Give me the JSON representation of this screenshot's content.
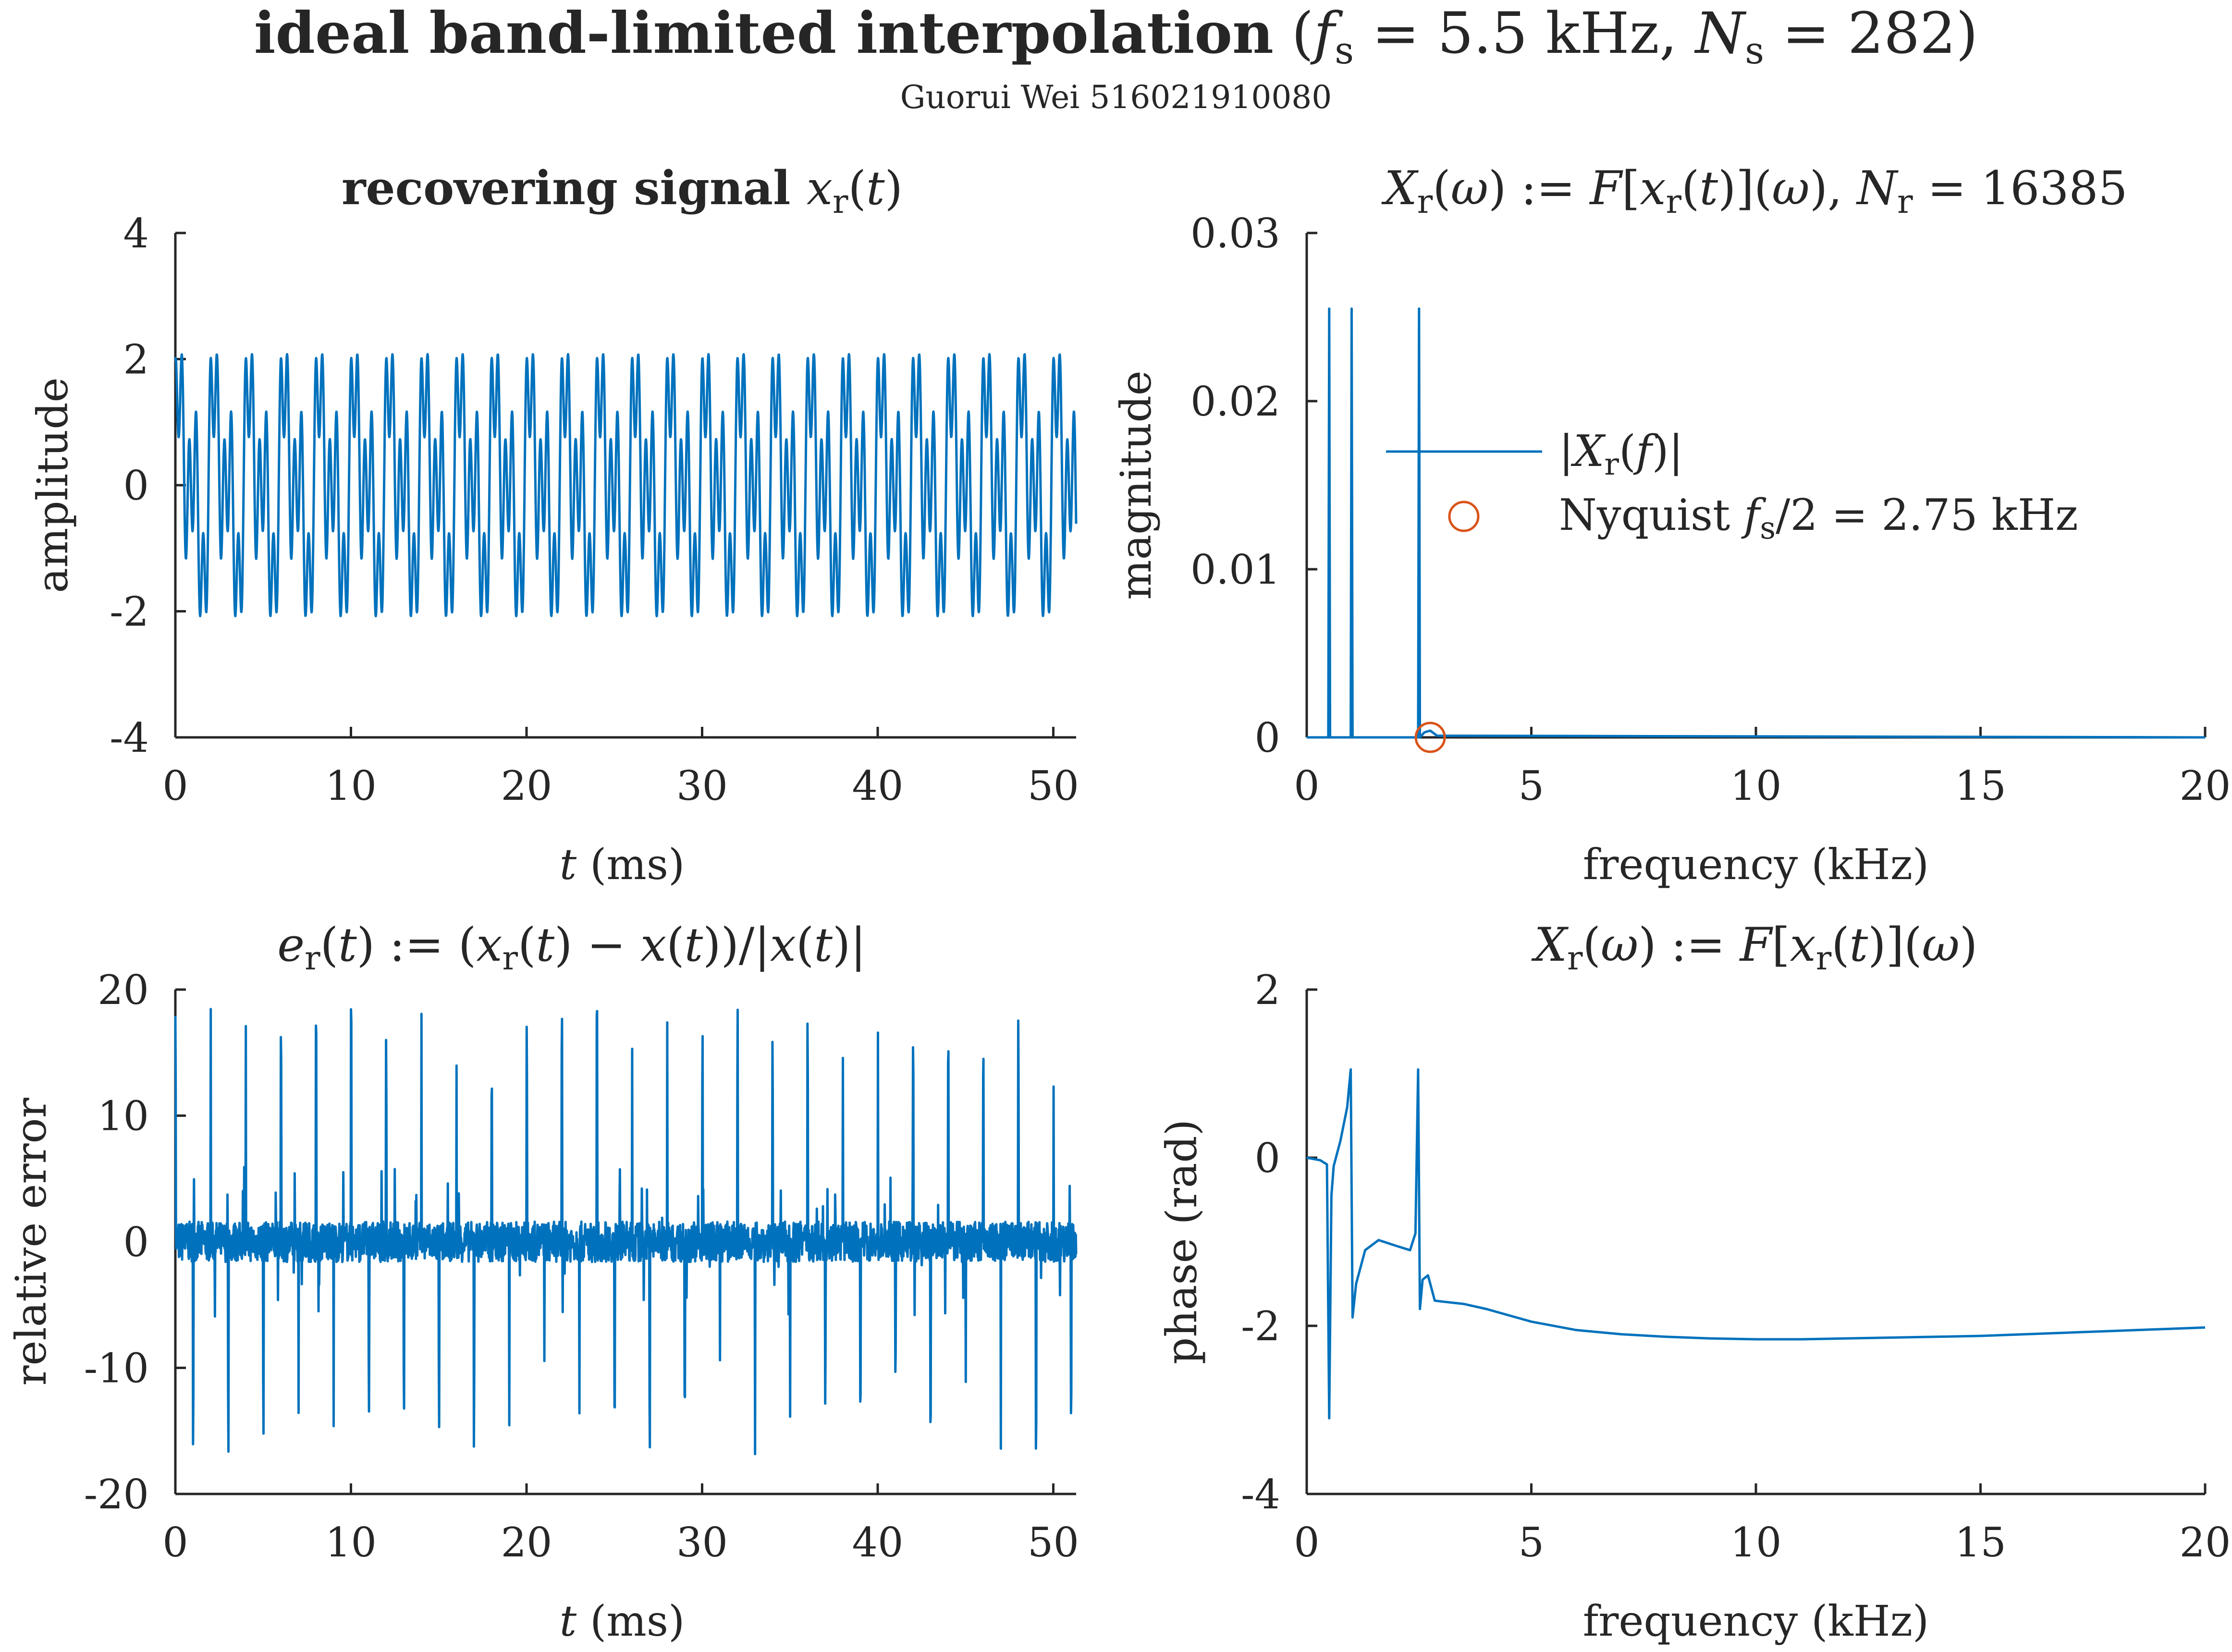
{
  "title": "ideal band-limited interpolation (f_s = 5.5 kHz, N_s = 282)",
  "author": "Guorui Wei 516021910080",
  "colors": {
    "series": "#0072BD",
    "marker": "#D95319",
    "axis": "#262626"
  },
  "chart_data": [
    {
      "id": "time-signal",
      "type": "line",
      "title": "recovering signal x_r(t)",
      "xlabel": "t (ms)",
      "ylabel": "amplitude",
      "xlim": [
        0,
        51.3
      ],
      "ylim": [
        -4,
        4
      ],
      "xticks": [
        0,
        10,
        20,
        30,
        40,
        50
      ],
      "xtick_labels": [
        "0",
        "10",
        "20",
        "30",
        "40",
        "50"
      ],
      "yticks": [
        -4,
        -2,
        0,
        2,
        4
      ],
      "ytick_labels": [
        "-4",
        "-2",
        "0",
        "2",
        "4"
      ],
      "grid": false,
      "series": [
        {
          "color": "#0072BD",
          "generator": "multitone",
          "components": [
            {
              "freq_khz": 0.5,
              "amp": 1.0
            },
            {
              "freq_khz": 1.0,
              "amp": 1.0
            },
            {
              "freq_khz": 2.5,
              "amp": 1.0
            }
          ],
          "approx_range": [
            -2.7,
            3.0
          ]
        }
      ]
    },
    {
      "id": "magnitude-spectrum",
      "type": "line",
      "title": "X_r(ω) := F[x_r(t)](ω), N_r = 16385",
      "xlabel": "frequency (kHz)",
      "ylabel": "magnitude",
      "xlim": [
        0,
        20
      ],
      "ylim": [
        0,
        0.03
      ],
      "xticks": [
        0,
        5,
        10,
        15,
        20
      ],
      "xtick_labels": [
        "0",
        "5",
        "10",
        "15",
        "20"
      ],
      "yticks": [
        0,
        0.01,
        0.02,
        0.03
      ],
      "ytick_labels": [
        "0",
        "0.01",
        "0.02",
        "0.03"
      ],
      "grid": false,
      "legend_position": "top-right",
      "series": [
        {
          "name": "|X_r(f)|",
          "color": "#0072BD",
          "peaks": [
            {
              "x": 0.5,
              "y": 0.0255
            },
            {
              "x": 1.0,
              "y": 0.0255
            },
            {
              "x": 2.5,
              "y": 0.0255
            }
          ]
        },
        {
          "name": "Nyquist f_s/2 = 2.75 kHz",
          "color": "#D95319",
          "marker": "circle",
          "points": [
            {
              "x": 2.75,
              "y": 0
            }
          ]
        }
      ]
    },
    {
      "id": "relative-error",
      "type": "line",
      "title": "e_r(t) := (x_r(t) − x(t))/|x(t)|",
      "xlabel": "t (ms)",
      "ylabel": "relative error",
      "xlim": [
        0,
        51.3
      ],
      "ylim": [
        -20,
        20
      ],
      "xticks": [
        0,
        10,
        20,
        30,
        40,
        50
      ],
      "xtick_labels": [
        "0",
        "10",
        "20",
        "30",
        "40",
        "50"
      ],
      "yticks": [
        -20,
        -10,
        0,
        10,
        20
      ],
      "ytick_labels": [
        "-20",
        "-10",
        "0",
        "10",
        "20"
      ],
      "grid": false,
      "series": [
        {
          "color": "#0072BD",
          "generator": "spiky-noise",
          "approx_range": [
            -17.5,
            18.8
          ]
        }
      ]
    },
    {
      "id": "phase-spectrum",
      "type": "line",
      "title": "X_r(ω) := F[x_r(t)](ω)",
      "xlabel": "frequency (kHz)",
      "ylabel": "phase (rad)",
      "xlim": [
        0,
        20
      ],
      "ylim": [
        -4,
        2
      ],
      "xticks": [
        0,
        5,
        10,
        15,
        20
      ],
      "xtick_labels": [
        "0",
        "5",
        "10",
        "15",
        "20"
      ],
      "yticks": [
        -4,
        -2,
        0,
        2
      ],
      "ytick_labels": [
        "-4",
        "-2",
        "0",
        "2"
      ],
      "grid": false,
      "series": [
        {
          "color": "#0072BD",
          "x": [
            0,
            0.3,
            0.45,
            0.5,
            0.55,
            0.6,
            0.75,
            0.9,
            0.98,
            1.02,
            1.1,
            1.3,
            1.6,
            2.0,
            2.3,
            2.42,
            2.48,
            2.52,
            2.58,
            2.7,
            2.85,
            3.0,
            3.5,
            4.0,
            5.0,
            6.0,
            7.0,
            8.0,
            9.0,
            10.0,
            11.0,
            12.0,
            13.0,
            14.0,
            15.0,
            16.0,
            17.0,
            18.0,
            19.0,
            20.0
          ],
          "y": [
            0,
            -0.03,
            -0.08,
            -3.1,
            -0.45,
            -0.1,
            0.2,
            0.6,
            1.05,
            -1.9,
            -1.5,
            -1.1,
            -0.98,
            -1.05,
            -1.1,
            -0.9,
            1.05,
            -1.8,
            -1.45,
            -1.4,
            -1.7,
            -1.71,
            -1.74,
            -1.8,
            -1.95,
            -2.05,
            -2.1,
            -2.13,
            -2.15,
            -2.16,
            -2.16,
            -2.15,
            -2.14,
            -2.13,
            -2.12,
            -2.1,
            -2.08,
            -2.06,
            -2.04,
            -2.02
          ]
        }
      ]
    }
  ]
}
